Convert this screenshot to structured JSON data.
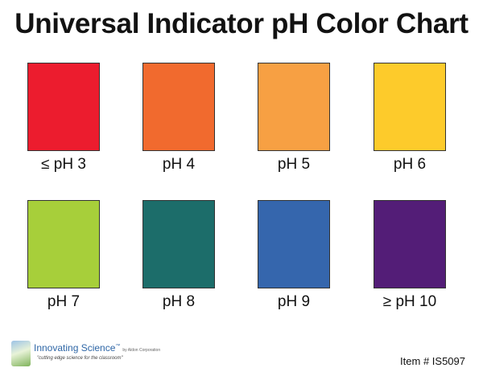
{
  "title": "Universal Indicator pH Color Chart",
  "swatches": [
    {
      "label": "≤ pH 3",
      "color": "#ec1c2e"
    },
    {
      "label": "pH 4",
      "color": "#f16a2e"
    },
    {
      "label": "pH 5",
      "color": "#f7a043"
    },
    {
      "label": "pH 6",
      "color": "#fdcb2b"
    },
    {
      "label": "pH 7",
      "color": "#a7cf3a"
    },
    {
      "label": "pH 8",
      "color": "#1c6d6a"
    },
    {
      "label": "pH 9",
      "color": "#3566ad"
    },
    {
      "label": "≥ pH 10",
      "color": "#531d77"
    }
  ],
  "footer": {
    "brand": "Innovating Science",
    "trademark": "™",
    "by": "by Aldon Corporation",
    "tagline": "\"cutting edge science for the classroom\"",
    "item_number": "Item # IS5097"
  }
}
